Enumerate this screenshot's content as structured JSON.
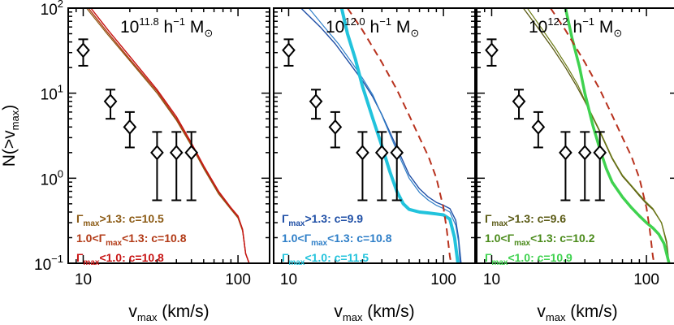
{
  "chart_data": {
    "type": "line",
    "xlabel": "v",
    "xlabel_sub": "max",
    "xlabel_units": "(km/s)",
    "ylabel": "N(>v",
    "ylabel_sub": "max",
    "ylabel_end": ")",
    "xscale": "log",
    "yscale": "log",
    "xlim": [
      8,
      160
    ],
    "ylim": [
      0.1,
      100
    ],
    "xticks": [
      {
        "value": 10,
        "label": "10"
      },
      {
        "value": 100,
        "label": "100"
      }
    ],
    "yticks": [
      {
        "value": 0.1,
        "base": "10",
        "exp": "−1"
      },
      {
        "value": 1,
        "base": "10",
        "exp": "0"
      },
      {
        "value": 10,
        "base": "10",
        "exp": "1"
      },
      {
        "value": 100,
        "base": "10",
        "exp": "2"
      }
    ],
    "observed": {
      "points": [
        {
          "x": 10,
          "y": 32,
          "ylo": 21,
          "yhi": 43
        },
        {
          "x": 15,
          "y": 8,
          "ylo": 5,
          "yhi": 11
        },
        {
          "x": 20,
          "y": 4,
          "ylo": 2.3,
          "yhi": 6
        },
        {
          "x": 30,
          "y": 2,
          "ylo": 0.55,
          "yhi": 3.5
        },
        {
          "x": 40,
          "y": 2,
          "ylo": 0.55,
          "yhi": 3.5
        },
        {
          "x": 50,
          "y": 2,
          "ylo": 0.55,
          "yhi": 3.5
        }
      ]
    },
    "panels": [
      {
        "title_base": "10",
        "title_exp": "11.8",
        "title_units": " h",
        "title_units_exp": "−1",
        "title_mass": " M",
        "title_sun": "⊙",
        "dashed": false,
        "legend": [
          {
            "label": "Γ",
            "sub": "max",
            "rest": ">1.3:  c=10.5",
            "color": "#8b5a14"
          },
          {
            "label": "1.0<Γ",
            "sub": "max",
            "rest": "<1.3: c=10.8",
            "color": "#b23a16"
          },
          {
            "label": "Γ",
            "sub": "max",
            "rest": "<1.0:  c=10.8",
            "color": "#c81414"
          }
        ],
        "series": [
          {
            "color": "#8b5a14",
            "width": 1.2,
            "points": [
              [
                10.5,
                100
              ],
              [
                14,
                52
              ],
              [
                20,
                24
              ],
              [
                30,
                10
              ],
              [
                40,
                4.8
              ],
              [
                50,
                2.4
              ],
              [
                60,
                1.3
              ],
              [
                75,
                0.65
              ],
              [
                90,
                0.43
              ],
              [
                100,
                0.34
              ],
              [
                107,
                0.24
              ],
              [
                112,
                0.13
              ],
              [
                118,
                0.1
              ]
            ]
          },
          {
            "color": "#b23a16",
            "width": 1.4,
            "points": [
              [
                10.8,
                100
              ],
              [
                14,
                55
              ],
              [
                20,
                25
              ],
              [
                30,
                10.5
              ],
              [
                40,
                5
              ],
              [
                50,
                2.5
              ],
              [
                60,
                1.35
              ],
              [
                75,
                0.68
              ],
              [
                90,
                0.44
              ],
              [
                100,
                0.35
              ],
              [
                107,
                0.25
              ],
              [
                112,
                0.13
              ],
              [
                118,
                0.1
              ]
            ]
          },
          {
            "color": "#c81414",
            "width": 1.4,
            "points": [
              [
                11.2,
                100
              ],
              [
                14.5,
                55
              ],
              [
                20,
                27
              ],
              [
                30,
                11
              ],
              [
                40,
                5.3
              ],
              [
                50,
                2.6
              ],
              [
                60,
                1.4
              ],
              [
                75,
                0.7
              ],
              [
                90,
                0.45
              ],
              [
                100,
                0.36
              ],
              [
                107,
                0.25
              ],
              [
                112,
                0.13
              ],
              [
                118,
                0.1
              ]
            ]
          }
        ]
      },
      {
        "title_base": "10",
        "title_exp": "12.0",
        "title_units": " h",
        "title_units_exp": "−1",
        "title_mass": " M",
        "title_sun": "⊙",
        "dashed": true,
        "legend": [
          {
            "label": "Γ",
            "sub": "max",
            "rest": ">1.3:  c=9.9",
            "color": "#1f4fa6"
          },
          {
            "label": "1.0<Γ",
            "sub": "max",
            "rest": "<1.3: c=10.8",
            "color": "#2f7fc8"
          },
          {
            "label": "Γ",
            "sub": "max",
            "rest": "<1.0:  c=11.5",
            "color": "#22c3dc"
          }
        ],
        "series": [
          {
            "color": "#1f4fa6",
            "width": 1.4,
            "points": [
              [
                12,
                100
              ],
              [
                16,
                60
              ],
              [
                20,
                38
              ],
              [
                25,
                22
              ],
              [
                30,
                14
              ],
              [
                35,
                9
              ],
              [
                40,
                5.6
              ],
              [
                50,
                2.3
              ],
              [
                60,
                1.1
              ],
              [
                70,
                0.75
              ],
              [
                80,
                0.6
              ],
              [
                90,
                0.52
              ],
              [
                100,
                0.48
              ],
              [
                110,
                0.44
              ],
              [
                120,
                0.32
              ],
              [
                125,
                0.2
              ],
              [
                130,
                0.1
              ]
            ]
          },
          {
            "color": "#2f7fc8",
            "width": 1.2,
            "points": [
              [
                13.5,
                100
              ],
              [
                17,
                60
              ],
              [
                21,
                38
              ],
              [
                26,
                22
              ],
              [
                30,
                15
              ],
              [
                35,
                9.5
              ],
              [
                40,
                5.5
              ],
              [
                50,
                2.1
              ],
              [
                60,
                1.0
              ],
              [
                70,
                0.68
              ],
              [
                80,
                0.55
              ],
              [
                90,
                0.48
              ],
              [
                100,
                0.44
              ],
              [
                110,
                0.4
              ],
              [
                120,
                0.28
              ],
              [
                125,
                0.18
              ],
              [
                128,
                0.1
              ]
            ]
          },
          {
            "color": "#22c3dc",
            "width": 4,
            "points": [
              [
                22,
                100
              ],
              [
                24,
                50
              ],
              [
                27,
                25
              ],
              [
                30,
                12
              ],
              [
                35,
                5
              ],
              [
                40,
                2.4
              ],
              [
                45,
                1.2
              ],
              [
                50,
                0.7
              ],
              [
                55,
                0.5
              ],
              [
                60,
                0.43
              ],
              [
                70,
                0.4
              ],
              [
                80,
                0.39
              ],
              [
                90,
                0.38
              ],
              [
                100,
                0.37
              ],
              [
                110,
                0.33
              ],
              [
                118,
                0.2
              ],
              [
                124,
                0.1
              ]
            ]
          }
        ]
      },
      {
        "title_base": "10",
        "title_exp": "12.2",
        "title_units": " h",
        "title_units_exp": "−1",
        "title_mass": " M",
        "title_sun": "⊙",
        "dashed": true,
        "legend": [
          {
            "label": "Γ",
            "sub": "max",
            "rest": ">1.3:  c=9.6",
            "color": "#5a5a14"
          },
          {
            "label": "1.0<Γ",
            "sub": "max",
            "rest": "<1.3: c=10.2",
            "color": "#4a8a1a"
          },
          {
            "label": "Γ",
            "sub": "max",
            "rest": "<1.0:  c=10.9",
            "color": "#3fd24f"
          }
        ],
        "series": [
          {
            "color": "#5a5a14",
            "width": 1.3,
            "points": [
              [
                16,
                100
              ],
              [
                20,
                58
              ],
              [
                25,
                33
              ],
              [
                30,
                20
              ],
              [
                35,
                12.5
              ],
              [
                40,
                8
              ],
              [
                50,
                3.5
              ],
              [
                60,
                1.7
              ],
              [
                70,
                1.05
              ],
              [
                80,
                0.8
              ],
              [
                90,
                0.62
              ],
              [
                100,
                0.5
              ],
              [
                110,
                0.43
              ],
              [
                125,
                0.3
              ],
              [
                135,
                0.18
              ],
              [
                140,
                0.1
              ]
            ]
          },
          {
            "color": "#6b7a14",
            "width": 1.2,
            "points": [
              [
                17,
                100
              ],
              [
                21,
                58
              ],
              [
                26,
                33
              ],
              [
                31,
                20
              ],
              [
                36,
                12.5
              ],
              [
                40,
                8.2
              ],
              [
                50,
                3.6
              ],
              [
                60,
                1.75
              ],
              [
                70,
                1.08
              ],
              [
                80,
                0.82
              ],
              [
                90,
                0.64
              ],
              [
                100,
                0.52
              ],
              [
                110,
                0.44
              ],
              [
                125,
                0.3
              ],
              [
                135,
                0.17
              ],
              [
                138,
                0.1
              ]
            ]
          },
          {
            "color": "#3fd24f",
            "width": 3.5,
            "points": [
              [
                30,
                100
              ],
              [
                33,
                45
              ],
              [
                37,
                20
              ],
              [
                40,
                10
              ],
              [
                45,
                4.2
              ],
              [
                50,
                2.2
              ],
              [
                55,
                1.3
              ],
              [
                60,
                0.9
              ],
              [
                70,
                0.6
              ],
              [
                80,
                0.45
              ],
              [
                90,
                0.36
              ],
              [
                100,
                0.3
              ],
              [
                110,
                0.26
              ],
              [
                120,
                0.22
              ],
              [
                130,
                0.17
              ],
              [
                140,
                0.1
              ]
            ]
          }
        ]
      }
    ],
    "dashed_reference": {
      "color": "#b8321e",
      "points": [
        [
          24,
          100
        ],
        [
          30,
          55
        ],
        [
          40,
          23
        ],
        [
          50,
          11
        ],
        [
          60,
          5.5
        ],
        [
          70,
          3
        ],
        [
          80,
          1.8
        ],
        [
          90,
          1.0
        ],
        [
          100,
          0.45
        ],
        [
          105,
          0.25
        ],
        [
          110,
          0.12
        ],
        [
          112,
          0.1
        ]
      ]
    }
  }
}
